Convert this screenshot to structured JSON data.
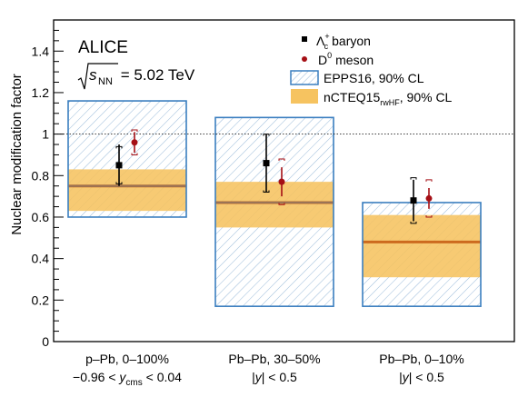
{
  "chart_data": {
    "type": "scatter",
    "ylabel": "Nuclear modification factor",
    "ylim": [
      0,
      1.55
    ],
    "yticks": [
      "0",
      "0.2",
      "0.4",
      "0.6",
      "0.8",
      "1",
      "1.2",
      "1.4"
    ],
    "reference_line": 1,
    "experiment": "ALICE",
    "energy": {
      "prefix": "s",
      "sub": "NN",
      "value": " = 5.02 TeV"
    },
    "categories": [
      {
        "line1": "p–Pb, 0–100%",
        "line2_pre": "−0.96 < ",
        "line2_var": "y",
        "line2_sub": "cms",
        "line2_post": " < 0.04"
      },
      {
        "line1": "Pb–Pb, 30–50%",
        "line2_pre": "|",
        "line2_var": "y",
        "line2_sub": "",
        "line2_post": "| < 0.5"
      },
      {
        "line1": "Pb–Pb, 0–10%",
        "line2_pre": "|",
        "line2_var": "y",
        "line2_sub": "",
        "line2_post": "| < 0.5"
      }
    ],
    "series": [
      {
        "name": "baryon",
        "symbol": "Λc+",
        "color": "#000000",
        "values": [
          0.85,
          0.86,
          0.68
        ],
        "stat_err": [
          0.1,
          0.14,
          0.1
        ],
        "syst_err": [
          0.09,
          0.14,
          0.11
        ]
      },
      {
        "name": "meson",
        "symbol": "D0",
        "color": "#a50f15",
        "values": [
          0.96,
          0.77,
          0.69
        ],
        "stat_err": [
          0.05,
          0.07,
          0.05
        ],
        "syst_err": [
          0.06,
          0.11,
          0.09
        ]
      }
    ],
    "models": [
      {
        "name": "EPPS16, 90% CL",
        "style": "hatched",
        "color": "#3a7ebf",
        "bands": [
          [
            0.6,
            1.16
          ],
          [
            0.17,
            1.08
          ],
          [
            0.17,
            0.67
          ]
        ]
      },
      {
        "name": "nCTEQ15",
        "sub": "rwHF",
        "suffix": ", 90% CL",
        "style": "filled",
        "color": "#f6c360",
        "line_color": "#cc6a1e",
        "bands": [
          [
            0.63,
            0.83
          ],
          [
            0.55,
            0.77
          ],
          [
            0.31,
            0.61
          ]
        ],
        "central": [
          0.75,
          0.67,
          0.48
        ]
      }
    ],
    "legend": {
      "placement": "top-right"
    }
  }
}
